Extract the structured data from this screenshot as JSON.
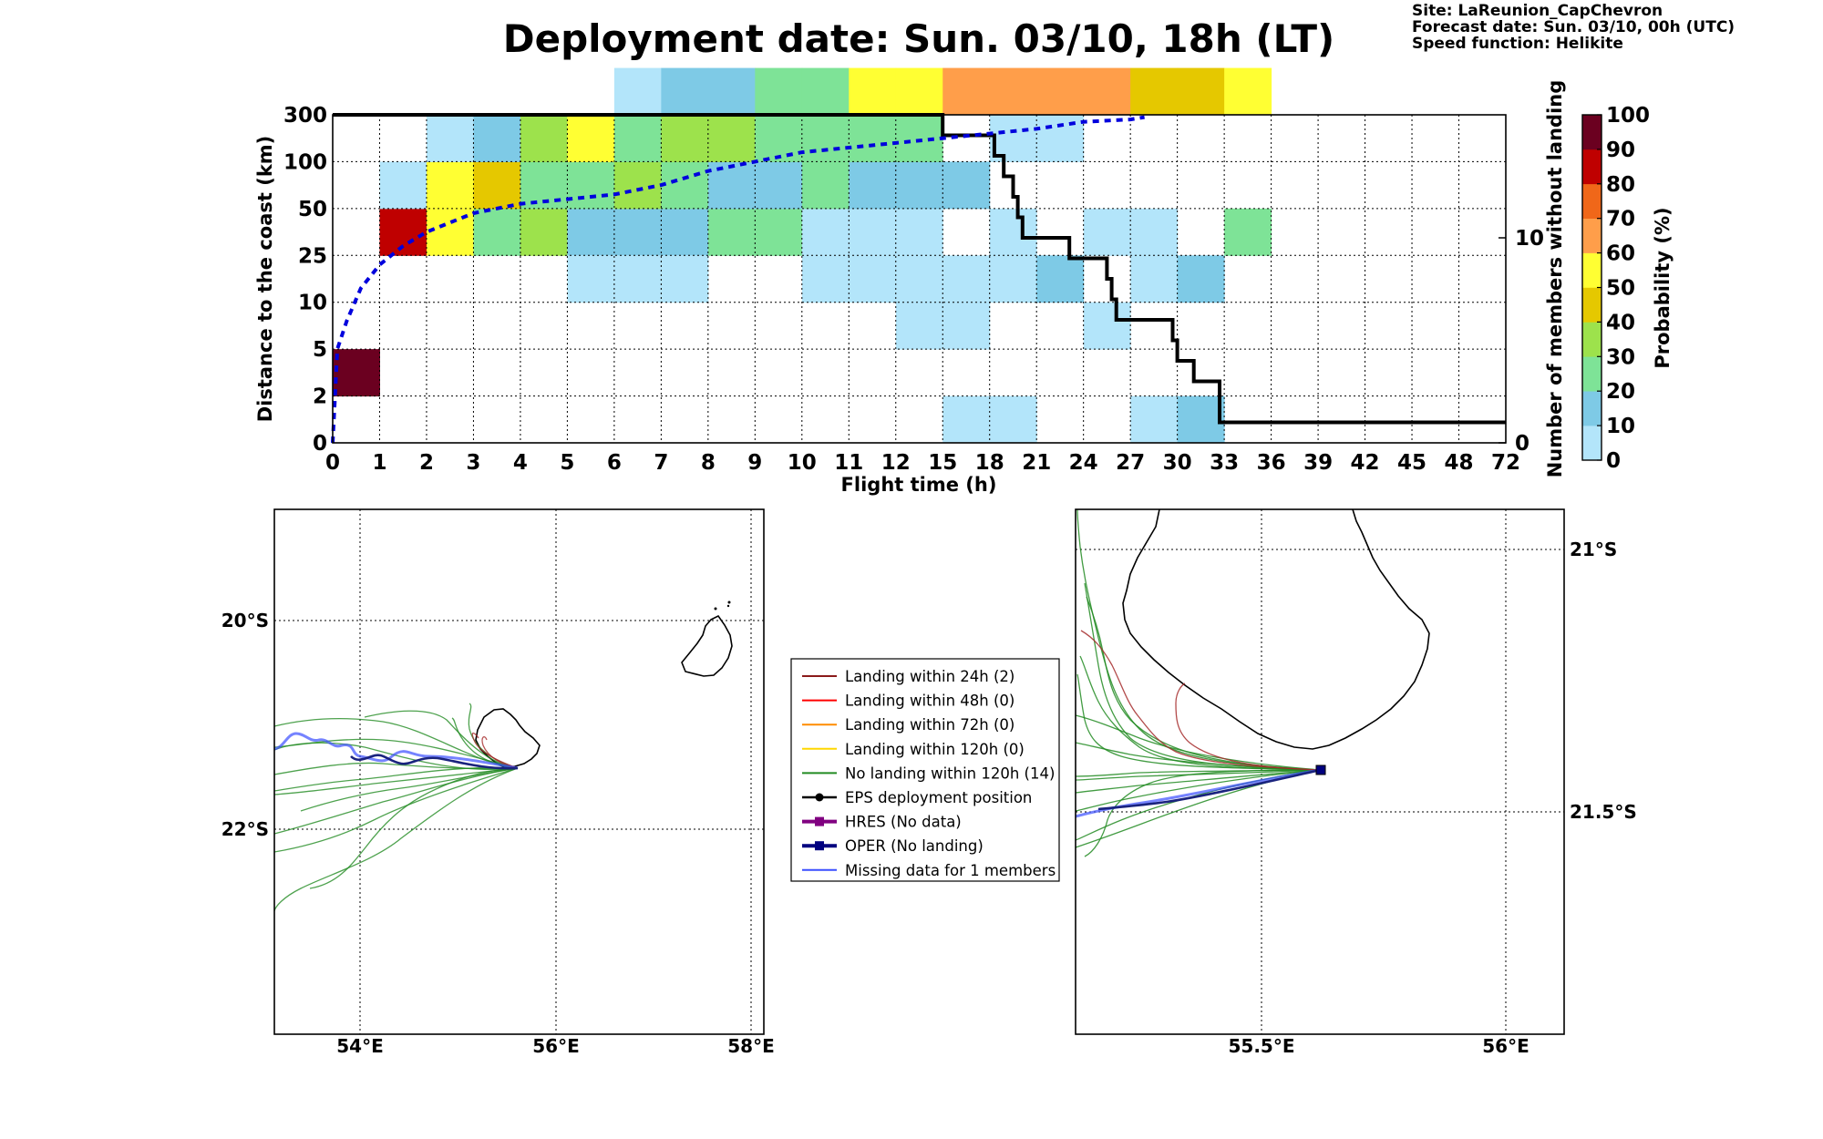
{
  "title": "Deployment date: Sun. 03/10, 18h (LT)",
  "info": {
    "site": "Site: LaReunion_CapChevron",
    "forecast": "Forecast date: Sun. 03/10, 00h (UTC)",
    "speed": "Speed function: Helikite"
  },
  "colors": {
    "bins": [
      "#b3e5fa",
      "#7ecae6",
      "#7ee397",
      "#9de24c",
      "#e5c800",
      "#ffff33",
      "#ff9e4a",
      "#f06719",
      "#bf0000",
      "#6b0020"
    ],
    "median_line": "#0000dd",
    "members_line": "#000000",
    "no_landing": "#228b22",
    "landing_24h": "#a52a2a",
    "oper": "#1a237e",
    "coast": "#000000"
  },
  "chart_data": {
    "type": "heatmap",
    "xlabel": "Flight time (h)",
    "ylabel": "Distance to the coast (km)",
    "y2label": "Number of members without landing",
    "colorbar_label": "Probability (%)",
    "x_ticks": [
      "0",
      "1",
      "2",
      "3",
      "4",
      "5",
      "6",
      "7",
      "8",
      "9",
      "10",
      "11",
      "12",
      "15",
      "18",
      "21",
      "24",
      "27",
      "30",
      "33",
      "36",
      "39",
      "42",
      "45",
      "48",
      "72"
    ],
    "y_ticks": [
      "0",
      "2",
      "5",
      "10",
      "25",
      "50",
      "100",
      "300"
    ],
    "y2_ticks": [
      "0",
      "10"
    ],
    "y2_range": [
      0,
      16
    ],
    "colorbar_ticks": [
      "0",
      "10",
      "20",
      "30",
      "40",
      "50",
      "60",
      "70",
      "80",
      "90",
      "100"
    ],
    "grid": true,
    "cells_note": "each cell = [x_bin_index, y_bin_index, color_bin_index]",
    "cells": [
      [
        0,
        1,
        9
      ],
      [
        1,
        4,
        8
      ],
      [
        2,
        4,
        5
      ],
      [
        3,
        4,
        2
      ],
      [
        4,
        4,
        3
      ],
      [
        5,
        4,
        1
      ],
      [
        6,
        4,
        1
      ],
      [
        7,
        4,
        1
      ],
      [
        8,
        4,
        2
      ],
      [
        9,
        4,
        2
      ],
      [
        10,
        4,
        0
      ],
      [
        11,
        4,
        0
      ],
      [
        12,
        4,
        0
      ],
      [
        14,
        4,
        0
      ],
      [
        16,
        4,
        0
      ],
      [
        17,
        4,
        0
      ],
      [
        19,
        4,
        2
      ],
      [
        1,
        5,
        0
      ],
      [
        2,
        5,
        5
      ],
      [
        3,
        5,
        4
      ],
      [
        4,
        5,
        2
      ],
      [
        5,
        5,
        2
      ],
      [
        6,
        5,
        3
      ],
      [
        7,
        5,
        2
      ],
      [
        8,
        5,
        1
      ],
      [
        9,
        5,
        1
      ],
      [
        10,
        5,
        2
      ],
      [
        11,
        5,
        1
      ],
      [
        12,
        5,
        1
      ],
      [
        13,
        5,
        1
      ],
      [
        2,
        6,
        0
      ],
      [
        3,
        6,
        1
      ],
      [
        4,
        6,
        3
      ],
      [
        5,
        6,
        5
      ],
      [
        6,
        6,
        2
      ],
      [
        7,
        6,
        3
      ],
      [
        8,
        6,
        3
      ],
      [
        9,
        6,
        2
      ],
      [
        10,
        6,
        2
      ],
      [
        11,
        6,
        2
      ],
      [
        12,
        6,
        2
      ],
      [
        14,
        6,
        0
      ],
      [
        15,
        6,
        0
      ],
      [
        6,
        7,
        0
      ],
      [
        7,
        7,
        1
      ],
      [
        8,
        7,
        1
      ],
      [
        9,
        7,
        2
      ],
      [
        10,
        7,
        2
      ],
      [
        11,
        7,
        5
      ],
      [
        12,
        7,
        5
      ],
      [
        13,
        7,
        6
      ],
      [
        14,
        7,
        6
      ],
      [
        15,
        7,
        6
      ],
      [
        16,
        7,
        6
      ],
      [
        17,
        7,
        4
      ],
      [
        18,
        7,
        4
      ],
      [
        19,
        7,
        5
      ],
      [
        5,
        3,
        0
      ],
      [
        6,
        3,
        0
      ],
      [
        7,
        3,
        0
      ],
      [
        10,
        3,
        0
      ],
      [
        11,
        3,
        0
      ],
      [
        12,
        3,
        0
      ],
      [
        13,
        3,
        0
      ],
      [
        14,
        3,
        0
      ],
      [
        15,
        3,
        1
      ],
      [
        17,
        3,
        0
      ],
      [
        18,
        3,
        1
      ],
      [
        12,
        2,
        0
      ],
      [
        13,
        2,
        0
      ],
      [
        16,
        2,
        0
      ],
      [
        13,
        0,
        0
      ],
      [
        14,
        0,
        0
      ],
      [
        17,
        0,
        0
      ],
      [
        18,
        0,
        1
      ]
    ],
    "members_without_landing": {
      "x": [
        0,
        13,
        13,
        14.1,
        14.1,
        14.3,
        14.3,
        14.5,
        14.5,
        14.6,
        14.6,
        14.7,
        14.7,
        15.7,
        15.7,
        16.5,
        16.5,
        16.6,
        16.6,
        16.7,
        16.7,
        17.9,
        17.9,
        18.0,
        18.0,
        18.35,
        18.35,
        18.9,
        18.9,
        25
      ],
      "y": [
        16,
        16,
        15,
        15,
        14,
        14,
        13,
        13,
        12,
        12,
        11,
        11,
        10,
        10,
        9,
        9,
        8,
        8,
        7,
        7,
        6,
        6,
        5,
        5,
        4,
        4,
        3,
        3,
        1,
        1
      ]
    },
    "median_distance": {
      "x": [
        0,
        0.05,
        0.1,
        0.3,
        0.6,
        1,
        1.5,
        2,
        2.5,
        3,
        4,
        5,
        6,
        7,
        8,
        9,
        10,
        11,
        12,
        13,
        14,
        15,
        16,
        17,
        17.3
      ],
      "y": [
        0,
        1.0,
        2.0,
        2.6,
        3.3,
        3.8,
        4.2,
        4.5,
        4.7,
        4.9,
        5.1,
        5.2,
        5.3,
        5.5,
        5.8,
        6.0,
        6.2,
        6.3,
        6.4,
        6.5,
        6.6,
        6.7,
        6.85,
        6.9,
        6.95
      ]
    }
  },
  "left_map": {
    "lon_ticks": [
      "54°E",
      "56°E",
      "58°E"
    ],
    "lat_ticks": [
      "20°S",
      "22°S"
    ]
  },
  "right_map": {
    "lon_ticks": [
      "55.5°E",
      "56°E"
    ],
    "lat_ticks": [
      "21°S",
      "21.5°S"
    ]
  },
  "legend": {
    "items": [
      {
        "label": "Landing within 24h (2)",
        "color": "#8b1a1a",
        "marker": "none"
      },
      {
        "label": "Landing within 48h (0)",
        "color": "#ff0000",
        "marker": "none"
      },
      {
        "label": "Landing within 72h (0)",
        "color": "#ff8c00",
        "marker": "none"
      },
      {
        "label": "Landing within 120h (0)",
        "color": "#ffd700",
        "marker": "none"
      },
      {
        "label": "No landing within 120h (14)",
        "color": "#228b22",
        "marker": "none"
      },
      {
        "label": "EPS deployment position",
        "color": "#000000",
        "marker": "circle"
      },
      {
        "label": "HRES (No data)",
        "color": "#800080",
        "marker": "square"
      },
      {
        "label": "OPER (No landing)",
        "color": "#00007f",
        "marker": "square"
      },
      {
        "label": "Missing data for 1 members",
        "color": "#3a4fff",
        "marker": "none"
      }
    ]
  }
}
